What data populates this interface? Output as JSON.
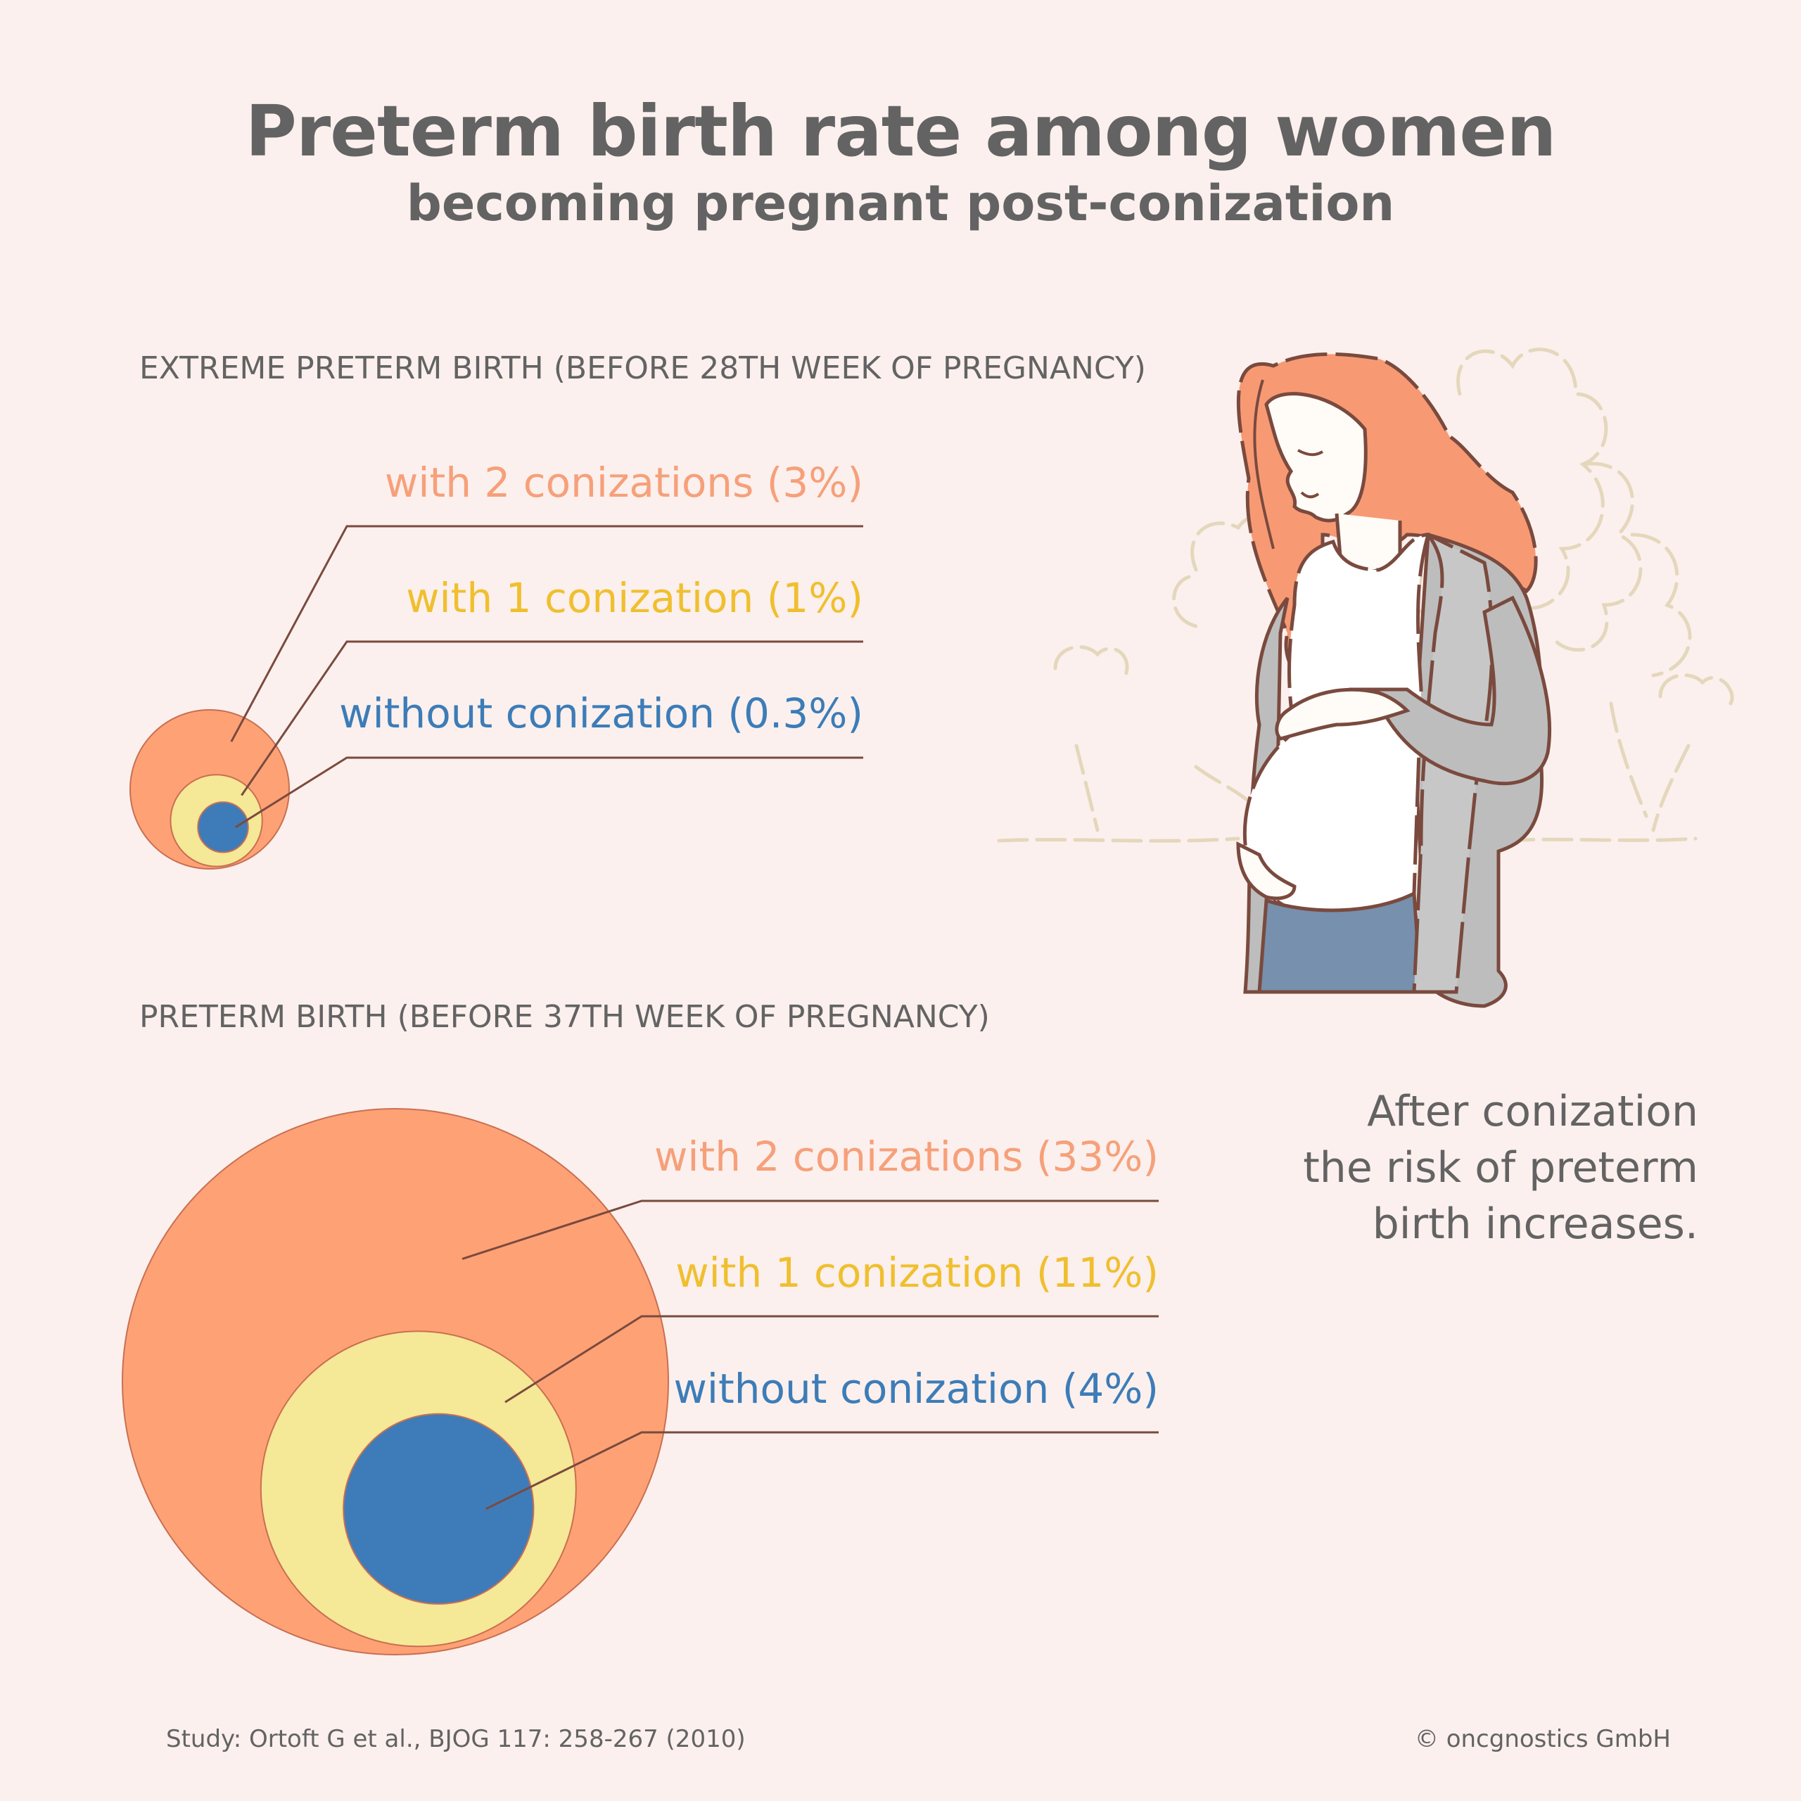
{
  "title": "Preterm birth rate among women",
  "subtitle": "becoming pregnant post-conization",
  "colors": {
    "background": "#fbf0ed",
    "two_conizations": "#fea276",
    "one_conization": "#f5e896",
    "without_conization": "#3e7cb9",
    "leader_line": "#7a4a3e",
    "text": "#636363"
  },
  "chart_data": [
    {
      "type": "nested-bubble",
      "title": "EXTREME PRETERM BIRTH (BEFORE 28TH WEEK OF PREGNANCY)",
      "series": [
        {
          "label": "with 2 conizations (3%)",
          "value": 3
        },
        {
          "label": "with 1 conization (1%)",
          "value": 1
        },
        {
          "label": "without conization (0.3%)",
          "value": 0.3
        }
      ]
    },
    {
      "type": "nested-bubble",
      "title": "PRETERM BIRTH (BEFORE 37TH WEEK OF PREGNANCY)",
      "series": [
        {
          "label": "with 2 conizations (33%)",
          "value": 33
        },
        {
          "label": "with 1 conization (11%)",
          "value": 11
        },
        {
          "label": "without conization (4%)",
          "value": 4
        }
      ]
    }
  ],
  "conclusion": [
    "After conization",
    "the risk of preterm",
    "birth increases."
  ],
  "source": "Study: Ortoft G et al., BJOG 117: 258-267 (2010)",
  "copyright": "© oncgnostics GmbH",
  "illustration": "pregnant-woman-illustration"
}
